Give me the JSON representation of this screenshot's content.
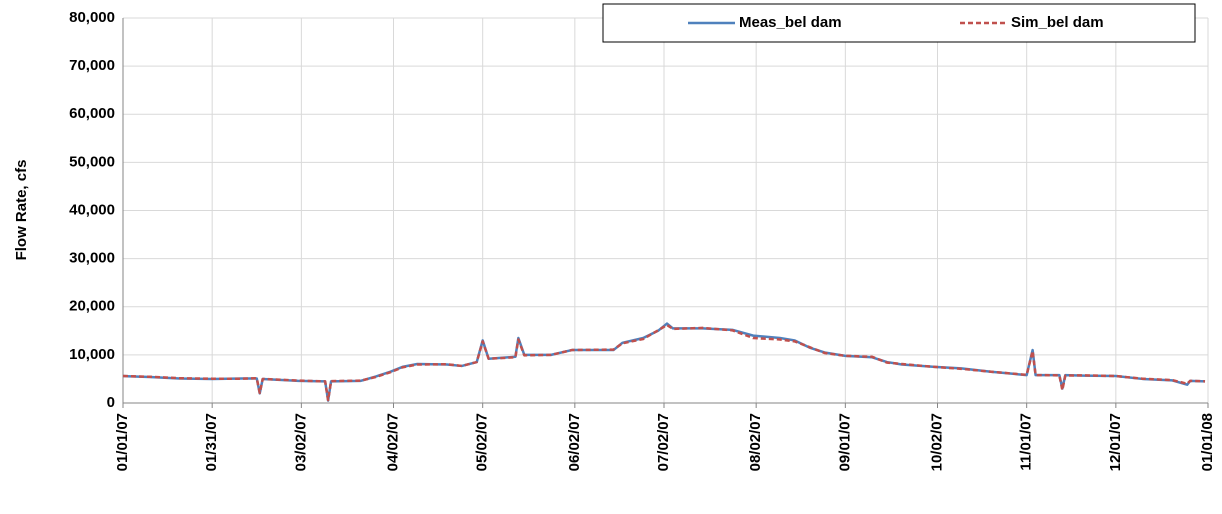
{
  "chart_data": {
    "type": "line",
    "y_label": "Flow Rate, cfs",
    "x": [
      "2007-01-01",
      "2007-01-10",
      "2007-01-20",
      "2007-01-31",
      "2007-02-10",
      "2007-02-15",
      "2007-02-16",
      "2007-02-17",
      "2007-03-01",
      "2007-03-10",
      "2007-03-11",
      "2007-03-12",
      "2007-03-22",
      "2007-03-27",
      "2007-04-01",
      "2007-04-05",
      "2007-04-10",
      "2007-04-20",
      "2007-04-25",
      "2007-04-30",
      "2007-05-02",
      "2007-05-04",
      "2007-05-13",
      "2007-05-14",
      "2007-05-16",
      "2007-05-25",
      "2007-06-01",
      "2007-06-15",
      "2007-06-18",
      "2007-06-25",
      "2007-06-30",
      "2007-07-03",
      "2007-07-05",
      "2007-07-15",
      "2007-07-25",
      "2007-08-01",
      "2007-08-10",
      "2007-08-15",
      "2007-08-20",
      "2007-08-25",
      "2007-09-01",
      "2007-09-10",
      "2007-09-15",
      "2007-09-20",
      "2007-10-01",
      "2007-10-10",
      "2007-10-20",
      "2007-11-01",
      "2007-11-03",
      "2007-11-04",
      "2007-11-12",
      "2007-11-13",
      "2007-11-14",
      "2007-11-20",
      "2007-12-01",
      "2007-12-10",
      "2007-12-20",
      "2007-12-25",
      "2007-12-26",
      "2007-12-31"
    ],
    "series": [
      {
        "name": "Meas_bel dam",
        "color": "#4f81bd",
        "dashed": false,
        "values": [
          5600,
          5400,
          5100,
          5000,
          5100,
          5100,
          2000,
          5000,
          4600,
          4500,
          500,
          4500,
          4600,
          5500,
          6500,
          7500,
          8100,
          8000,
          7700,
          8500,
          13000,
          9200,
          9600,
          13500,
          10000,
          10000,
          11000,
          11000,
          12500,
          13500,
          15000,
          16500,
          15500,
          15500,
          15200,
          14000,
          13500,
          13000,
          11500,
          10500,
          9800,
          9500,
          8500,
          8000,
          7500,
          7200,
          6500,
          5800,
          11000,
          5800,
          5800,
          3000,
          5800,
          5700,
          5600,
          5000,
          4700,
          3800,
          4600,
          4500
        ]
      },
      {
        "name": "Sim_bel dam",
        "color": "#c0504d",
        "dashed": true,
        "values": [
          5600,
          5450,
          5150,
          5050,
          5050,
          5150,
          2100,
          5000,
          4650,
          4500,
          600,
          4550,
          4650,
          5400,
          6400,
          7400,
          8000,
          8050,
          7700,
          8500,
          12800,
          9200,
          9500,
          13200,
          9900,
          10000,
          11000,
          11100,
          12400,
          13300,
          15100,
          16200,
          15400,
          15600,
          15100,
          13500,
          13200,
          12800,
          11600,
          10400,
          9800,
          9600,
          8400,
          8100,
          7500,
          7100,
          6500,
          5850,
          10800,
          5800,
          5750,
          2700,
          5700,
          5750,
          5600,
          5050,
          4750,
          4000,
          4600,
          4500
        ]
      }
    ],
    "xlim": [
      "2007-01-01",
      "2008-01-01"
    ],
    "xticks": [
      {
        "value": "2007-01-01",
        "label": "01/01/07"
      },
      {
        "value": "2007-01-31",
        "label": "01/31/07"
      },
      {
        "value": "2007-03-02",
        "label": "03/02/07"
      },
      {
        "value": "2007-04-02",
        "label": "04/02/07"
      },
      {
        "value": "2007-05-02",
        "label": "05/02/07"
      },
      {
        "value": "2007-06-02",
        "label": "06/02/07"
      },
      {
        "value": "2007-07-02",
        "label": "07/02/07"
      },
      {
        "value": "2007-08-02",
        "label": "08/02/07"
      },
      {
        "value": "2007-09-01",
        "label": "09/01/07"
      },
      {
        "value": "2007-10-02",
        "label": "10/02/07"
      },
      {
        "value": "2007-11-01",
        "label": "11/01/07"
      },
      {
        "value": "2007-12-01",
        "label": "12/01/07"
      },
      {
        "value": "2008-01-01",
        "label": "01/01/08"
      }
    ],
    "ylim": [
      0,
      80000
    ],
    "yticks": [
      0,
      {
        "value": 10000,
        "label": "10,000"
      },
      {
        "value": 20000,
        "label": "20,000"
      },
      {
        "value": 30000,
        "label": "30,000"
      },
      {
        "value": 40000,
        "label": "40,000"
      },
      {
        "value": 50000,
        "label": "50,000"
      },
      {
        "value": 60000,
        "label": "60,000"
      },
      {
        "value": 70000,
        "label": "70,000"
      },
      {
        "value": 80000,
        "label": "80,000"
      }
    ],
    "grid": true,
    "legend": "top-right"
  }
}
